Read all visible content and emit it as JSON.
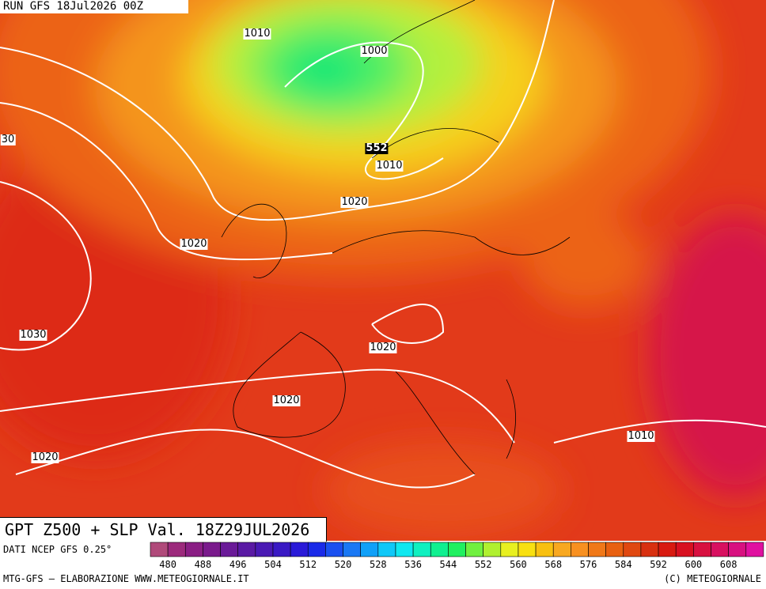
{
  "header": {
    "run": "RUN GFS 18Jul2026 00Z"
  },
  "map": {
    "isobar_labels": [
      "1010",
      "1000",
      "30",
      "552",
      "1010",
      "1020",
      "1020",
      "1030",
      "1020",
      "1020",
      "1010",
      "1020"
    ]
  },
  "title": "GPT Z500 + SLP Val. 18Z29JUL2026",
  "source": "DATI NCEP GFS 0.25°",
  "scale": {
    "ticks": [
      480,
      488,
      496,
      504,
      512,
      520,
      528,
      536,
      544,
      552,
      560,
      568,
      576,
      584,
      592,
      600,
      608
    ],
    "start": 476,
    "step": 4,
    "colors": [
      "#b04a7a",
      "#9c2a7c",
      "#8a1e84",
      "#7a1a8c",
      "#6a1a98",
      "#5a1aa4",
      "#4a1ab4",
      "#3a1ac4",
      "#2a1ad8",
      "#1a2ae8",
      "#1a50f0",
      "#1a78f4",
      "#10a0f8",
      "#10c8f8",
      "#10e8f0",
      "#10f0c0",
      "#10f090",
      "#20f060",
      "#70f040",
      "#b0f030",
      "#e8f020",
      "#f8e010",
      "#f8c010",
      "#f8a820",
      "#f89020",
      "#f07818",
      "#e86010",
      "#e04810",
      "#d83010",
      "#d81a10",
      "#d81020",
      "#d81040",
      "#d81060",
      "#d81080",
      "#e010a0"
    ]
  },
  "footer": {
    "left": "MTG-GFS — ELABORAZIONE WWW.METEOGIORNALE.IT",
    "right": "(C) METEOGIORNALE"
  }
}
